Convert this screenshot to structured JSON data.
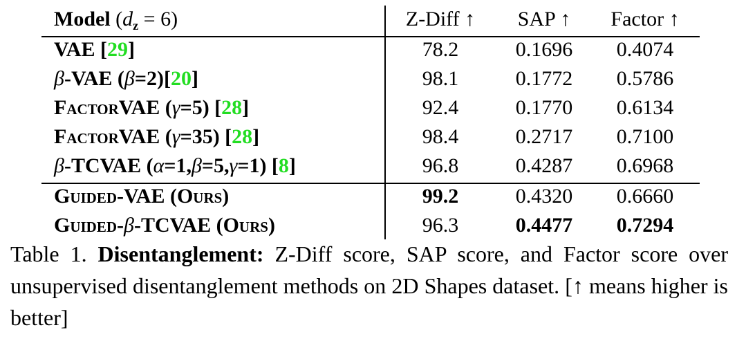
{
  "table": {
    "header": {
      "model": [
        {
          "text": "Model",
          "bold": true
        },
        {
          "text": " ("
        },
        {
          "text": "d",
          "italic": true
        },
        {
          "text": "z",
          "bold": true,
          "sub": true
        },
        {
          "text": " = 6)"
        }
      ],
      "columns": [
        "Z-Diff ↑",
        "SAP ↑",
        "Factor ↑"
      ]
    },
    "rows": [
      {
        "model": [
          {
            "text": "VAE [",
            "bold": true
          },
          {
            "text": "29",
            "bold": true,
            "color": "#22dd22"
          },
          {
            "text": "]",
            "bold": true
          }
        ],
        "values": [
          "78.2",
          "0.1696",
          "0.4074"
        ]
      },
      {
        "model": [
          {
            "text": "β",
            "italic": true
          },
          {
            "text": "-VAE (",
            "bold": true
          },
          {
            "text": "β",
            "italic": true
          },
          {
            "text": "=2)[",
            "bold": true
          },
          {
            "text": "20",
            "bold": true,
            "color": "#22dd22"
          },
          {
            "text": "]",
            "bold": true
          }
        ],
        "values": [
          "98.1",
          "0.1772",
          "0.5786"
        ]
      },
      {
        "model": [
          {
            "text": "FactorVAE",
            "bold": true,
            "smallcaps": true
          },
          {
            "text": " (",
            "bold": true
          },
          {
            "text": "γ",
            "italic": true
          },
          {
            "text": "=5) [",
            "bold": true
          },
          {
            "text": "28",
            "bold": true,
            "color": "#22dd22"
          },
          {
            "text": "]",
            "bold": true
          }
        ],
        "values": [
          "92.4",
          "0.1770",
          "0.6134"
        ]
      },
      {
        "model": [
          {
            "text": "FactorVAE",
            "bold": true,
            "smallcaps": true
          },
          {
            "text": " (",
            "bold": true
          },
          {
            "text": "γ",
            "italic": true
          },
          {
            "text": "=35) [",
            "bold": true
          },
          {
            "text": "28",
            "bold": true,
            "color": "#22dd22"
          },
          {
            "text": "]",
            "bold": true
          }
        ],
        "values": [
          "98.4",
          "0.2717",
          "0.7100"
        ]
      },
      {
        "model": [
          {
            "text": "β",
            "italic": true
          },
          {
            "text": "-TCVAE (",
            "bold": true
          },
          {
            "text": "α",
            "italic": true
          },
          {
            "text": "=1,",
            "bold": true
          },
          {
            "text": "β",
            "italic": true
          },
          {
            "text": "=5,",
            "bold": true
          },
          {
            "text": "γ",
            "italic": true
          },
          {
            "text": "=1) [",
            "bold": true
          },
          {
            "text": "8",
            "bold": true,
            "color": "#22dd22"
          },
          {
            "text": "]",
            "bold": true
          }
        ],
        "values": [
          "96.8",
          "0.4287",
          "0.6968"
        ]
      },
      {
        "model": [
          {
            "text": "Guided-VAE (Ours)",
            "bold": true,
            "smallcaps": true
          }
        ],
        "values": [
          "99.2",
          "0.4320",
          "0.6660"
        ],
        "bold_columns": [
          0
        ]
      },
      {
        "model": [
          {
            "text": "Guided-",
            "bold": true,
            "smallcaps": true
          },
          {
            "text": "β",
            "italic": true
          },
          {
            "text": "-TCVAE (Ours)",
            "bold": true,
            "smallcaps": true
          }
        ],
        "values": [
          "96.3",
          "0.4477",
          "0.7294"
        ],
        "bold_columns": [
          1,
          2
        ]
      }
    ]
  },
  "caption": [
    {
      "text": "Table 1. "
    },
    {
      "text": "Disentanglement:",
      "bold": true
    },
    {
      "text": " Z-Diff score, SAP score, and Factor score over unsupervised disentanglement methods on 2D Shapes dataset. [↑ means higher is better]"
    }
  ]
}
